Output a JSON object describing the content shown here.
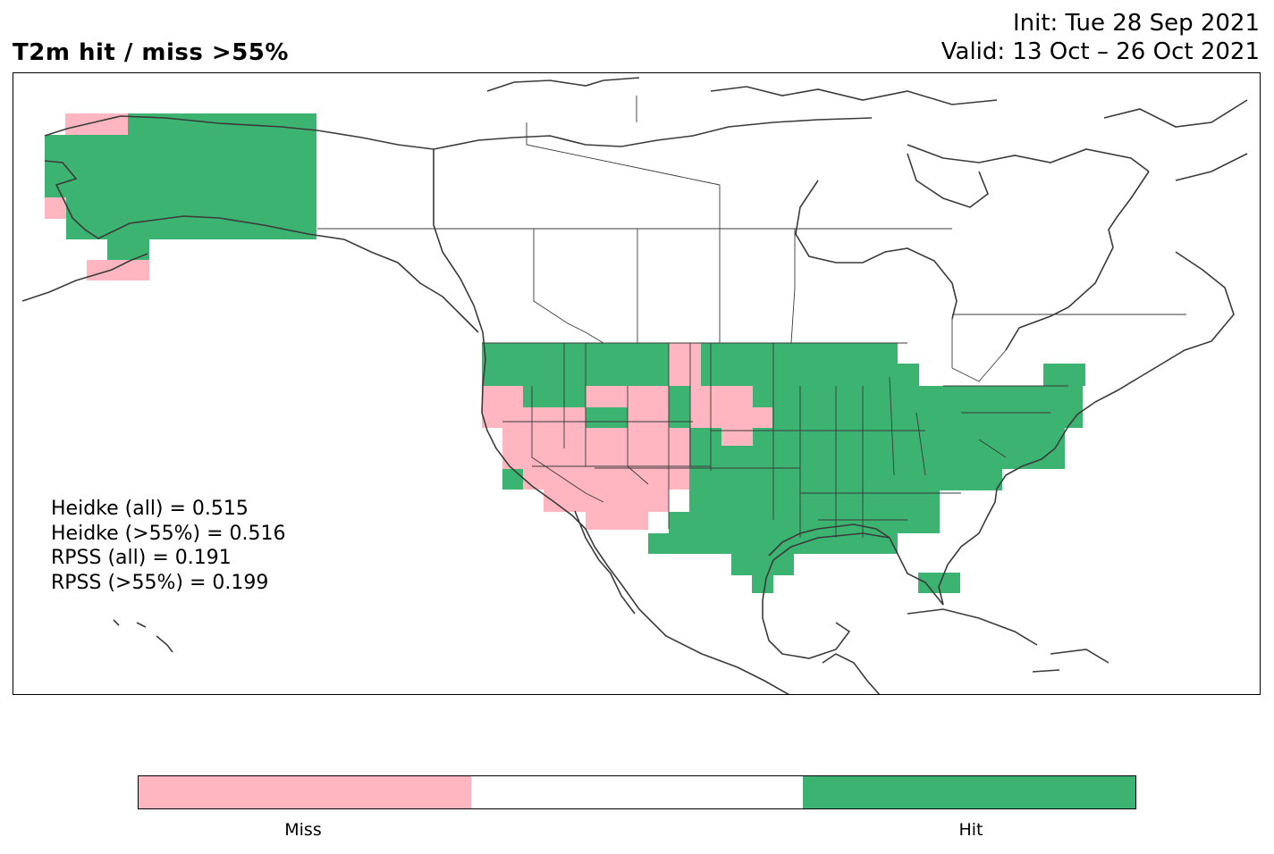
{
  "title": "T2m hit / miss  >55%",
  "init": "Init: Tue 28 Sep 2021",
  "valid": "Valid: 13 Oct – 26 Oct 2021",
  "scores": {
    "heidke_all": "Heidke (all) = 0.515",
    "heidke_55": "Heidke (>55%) = 0.516",
    "rpss_all": "RPSS (all) = 0.191",
    "rpss_55": "RPSS (>55%) = 0.199"
  },
  "colors": {
    "miss": "#ffb6c1",
    "neutral": "#ffffff",
    "hit": "#3cb371",
    "coast": "#3a3a3a"
  },
  "colorbar": {
    "labels": [
      "Miss",
      "Hit"
    ]
  }
}
